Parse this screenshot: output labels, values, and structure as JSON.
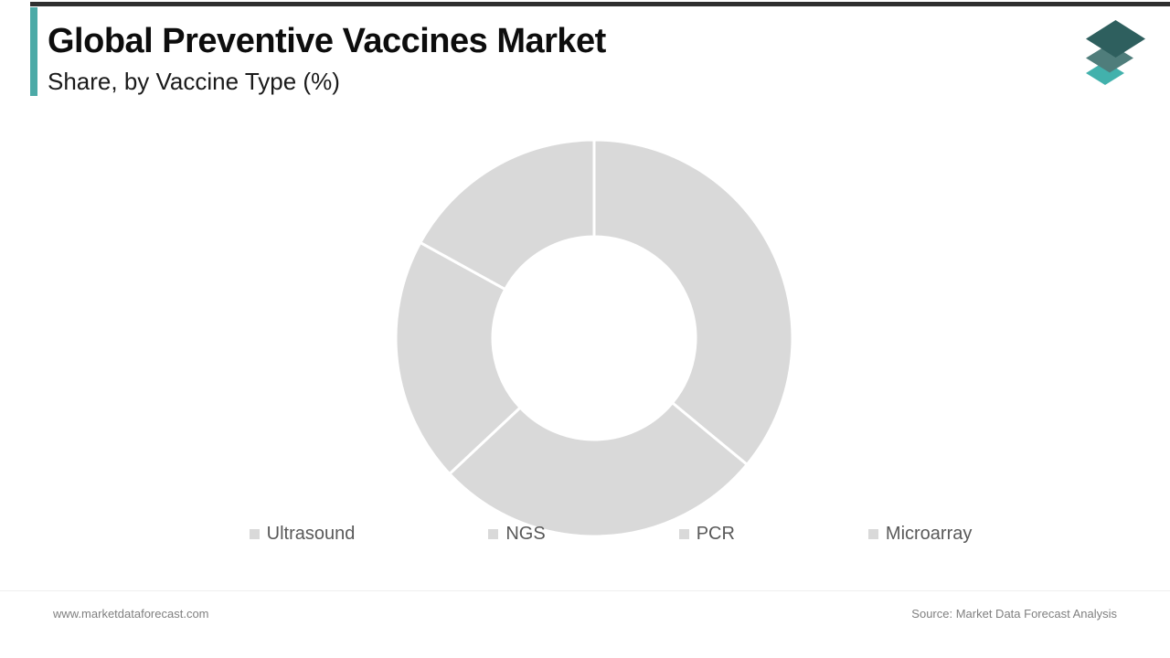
{
  "header": {
    "title": "Global Preventive Vaccines Market",
    "subtitle": "Share, by Vaccine Type (%)",
    "accent_color": "#4caaa7",
    "top_bar_color": "#2f2f2f"
  },
  "logo": {
    "name": "market-data-forecast-logo",
    "layer_colors": {
      "top": "#2e5f5e",
      "middle": "#4f7d7b",
      "bottom": "#42b1ac"
    }
  },
  "chart_data": {
    "type": "pie",
    "subtype": "donut",
    "title": "Global Preventive Vaccines Market Share, by Vaccine Type (%)",
    "categories": [
      "Ultrasound",
      "NGS",
      "PCR",
      "Microarray"
    ],
    "values": [
      36,
      27,
      20,
      17
    ],
    "unit": "%",
    "start_angle_deg": 0,
    "direction": "clockwise",
    "segment_color": "#d9d9d9",
    "divider_color": "#ffffff",
    "divider_width": 3,
    "inner_radius_ratio": 0.51,
    "outer_radius_px": 217,
    "inner_radius_px": 111,
    "legend_position": "bottom",
    "data_labels": false
  },
  "legend": {
    "items": [
      {
        "label": "Ultrasound",
        "swatch_color": "#d9d9d9"
      },
      {
        "label": "NGS",
        "swatch_color": "#d9d9d9"
      },
      {
        "label": "PCR",
        "swatch_color": "#d9d9d9"
      },
      {
        "label": "Microarray",
        "swatch_color": "#d9d9d9"
      }
    ]
  },
  "footer": {
    "website": "www.marketdataforecast.com",
    "source": "Source: Market Data Forecast Analysis"
  }
}
